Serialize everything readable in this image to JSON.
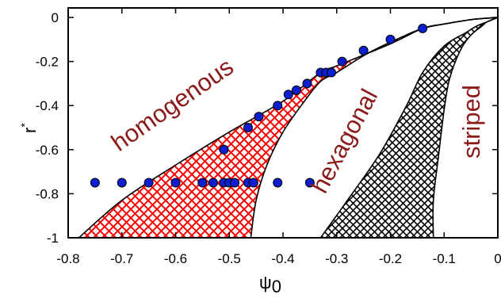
{
  "chart_data": {
    "type": "scatter",
    "xlabel": "ψ",
    "xlabel_subscript": "0",
    "ylabel": "r",
    "ylabel_superscript": "*",
    "xlim": [
      -0.8,
      0
    ],
    "ylim": [
      -1,
      0.05
    ],
    "xticks": [
      -0.8,
      -0.7,
      -0.6,
      -0.5,
      -0.4,
      -0.3,
      -0.2,
      -0.1,
      0
    ],
    "xtick_labels": [
      "-0.8",
      "-0.7",
      "-0.6",
      "-0.5",
      "-0.4",
      "-0.3",
      "-0.2",
      "-0.1",
      "0"
    ],
    "yticks": [
      0,
      -0.2,
      -0.4,
      -0.6,
      -0.8,
      -1
    ],
    "ytick_labels": [
      "0",
      "-0.2",
      "-0.4",
      "-0.6",
      "-0.8",
      "-1"
    ],
    "grid": false,
    "regions": [
      {
        "label": "homogenous",
        "fill": "none"
      },
      {
        "label": "hexagonal",
        "fill": "none"
      },
      {
        "label": "striped",
        "fill": "none"
      }
    ],
    "hatched_regions": [
      {
        "color": "#ff0000",
        "pattern": "crosshatch"
      },
      {
        "color": "#000000",
        "pattern": "crosshatch"
      }
    ],
    "boundaries": [
      {
        "x": [
          -0.78,
          -0.7,
          -0.6,
          -0.5,
          -0.4,
          -0.33,
          -0.3,
          -0.2,
          -0.14,
          -0.1,
          -0.05,
          0
        ],
        "y": [
          -1,
          -0.83,
          -0.67,
          -0.52,
          -0.38,
          -0.25,
          -0.22,
          -0.12,
          -0.05,
          -0.03,
          -0.01,
          0
        ]
      },
      {
        "x": [
          -0.46,
          -0.45,
          -0.43,
          -0.4,
          -0.36,
          -0.33,
          -0.3,
          -0.24,
          -0.18,
          -0.14,
          -0.1,
          -0.05,
          0
        ],
        "y": [
          -1,
          -0.83,
          -0.67,
          -0.52,
          -0.38,
          -0.29,
          -0.25,
          -0.16,
          -0.09,
          -0.05,
          -0.03,
          -0.01,
          0
        ]
      },
      {
        "x": [
          -0.33,
          -0.28,
          -0.22,
          -0.17,
          -0.14,
          -0.1,
          -0.06,
          -0.04,
          -0.02,
          0
        ],
        "y": [
          -1,
          -0.83,
          -0.62,
          -0.4,
          -0.25,
          -0.13,
          -0.07,
          -0.04,
          -0.02,
          0
        ]
      },
      {
        "x": [
          -0.12,
          -0.12,
          -0.11,
          -0.1,
          -0.09,
          -0.07,
          -0.05,
          -0.03,
          -0.02,
          0
        ],
        "y": [
          -1,
          -0.83,
          -0.62,
          -0.42,
          -0.28,
          -0.15,
          -0.08,
          -0.04,
          -0.02,
          0
        ]
      }
    ],
    "series": [
      {
        "marker_color": "#0a1fd0",
        "x": [
          -0.75,
          -0.7,
          -0.65,
          -0.6,
          -0.55,
          -0.53,
          -0.51,
          -0.5,
          -0.49,
          -0.465,
          -0.455,
          -0.41,
          -0.35,
          -0.51,
          -0.465,
          -0.445,
          -0.41,
          -0.39,
          -0.375,
          -0.355,
          -0.33,
          -0.32,
          -0.31,
          -0.29,
          -0.25,
          -0.2,
          -0.14
        ],
        "y": [
          -0.75,
          -0.75,
          -0.75,
          -0.75,
          -0.75,
          -0.75,
          -0.75,
          -0.75,
          -0.75,
          -0.75,
          -0.75,
          -0.75,
          -0.75,
          -0.6,
          -0.5,
          -0.45,
          -0.4,
          -0.35,
          -0.33,
          -0.3,
          -0.25,
          -0.25,
          -0.25,
          -0.2,
          -0.15,
          -0.1,
          -0.05
        ]
      }
    ]
  }
}
